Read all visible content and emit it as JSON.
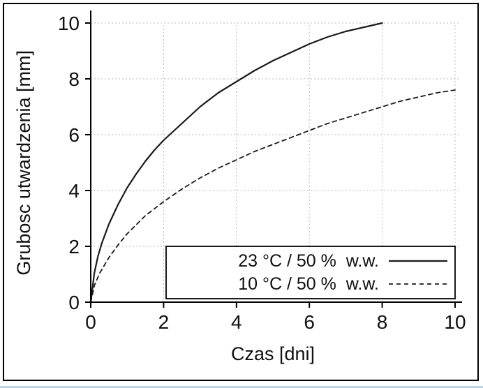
{
  "page": {
    "background": "#ffffff",
    "frame_border_color": "#000000",
    "grid_color": "#b9b9b9",
    "line_color": "#1a1a1a"
  },
  "chart_data": {
    "type": "line",
    "title": "",
    "xlabel": "Czas [dni]",
    "ylabel": "Grubosc utwardzenia [mm]",
    "xlim": [
      0,
      10
    ],
    "ylim": [
      0,
      10
    ],
    "xticks": [
      0,
      2,
      4,
      6,
      8,
      10
    ],
    "yticks": [
      0,
      2,
      4,
      6,
      8,
      10
    ],
    "grid": true,
    "grid_style": "dashed",
    "legend_position": "lower right",
    "series": [
      {
        "name": "23 °C / 50 %  w.w.",
        "style": "solid",
        "points": [
          [
            0,
            0
          ],
          [
            0.1,
            1.05
          ],
          [
            0.2,
            1.65
          ],
          [
            0.3,
            2.1
          ],
          [
            0.4,
            2.45
          ],
          [
            0.5,
            2.8
          ],
          [
            0.75,
            3.5
          ],
          [
            1,
            4.1
          ],
          [
            1.25,
            4.6
          ],
          [
            1.5,
            5.05
          ],
          [
            1.75,
            5.45
          ],
          [
            2,
            5.8
          ],
          [
            2.5,
            6.4
          ],
          [
            3,
            7.0
          ],
          [
            3.5,
            7.5
          ],
          [
            4,
            7.9
          ],
          [
            4.5,
            8.3
          ],
          [
            5,
            8.65
          ],
          [
            5.5,
            8.95
          ],
          [
            6,
            9.25
          ],
          [
            6.5,
            9.5
          ],
          [
            7,
            9.7
          ],
          [
            7.5,
            9.85
          ],
          [
            8,
            10.0
          ]
        ]
      },
      {
        "name": "10 °C / 50 %  w.w.",
        "style": "dashed",
        "points": [
          [
            0,
            0
          ],
          [
            0.1,
            0.6
          ],
          [
            0.25,
            1.05
          ],
          [
            0.5,
            1.6
          ],
          [
            0.75,
            2.05
          ],
          [
            1,
            2.45
          ],
          [
            1.5,
            3.1
          ],
          [
            2,
            3.6
          ],
          [
            2.5,
            4.05
          ],
          [
            3,
            4.45
          ],
          [
            3.5,
            4.8
          ],
          [
            4,
            5.1
          ],
          [
            4.5,
            5.4
          ],
          [
            5,
            5.65
          ],
          [
            5.5,
            5.9
          ],
          [
            6,
            6.15
          ],
          [
            6.5,
            6.4
          ],
          [
            7,
            6.6
          ],
          [
            7.5,
            6.8
          ],
          [
            8,
            7.0
          ],
          [
            8.5,
            7.2
          ],
          [
            9,
            7.35
          ],
          [
            9.5,
            7.5
          ],
          [
            10,
            7.6
          ]
        ]
      }
    ]
  }
}
